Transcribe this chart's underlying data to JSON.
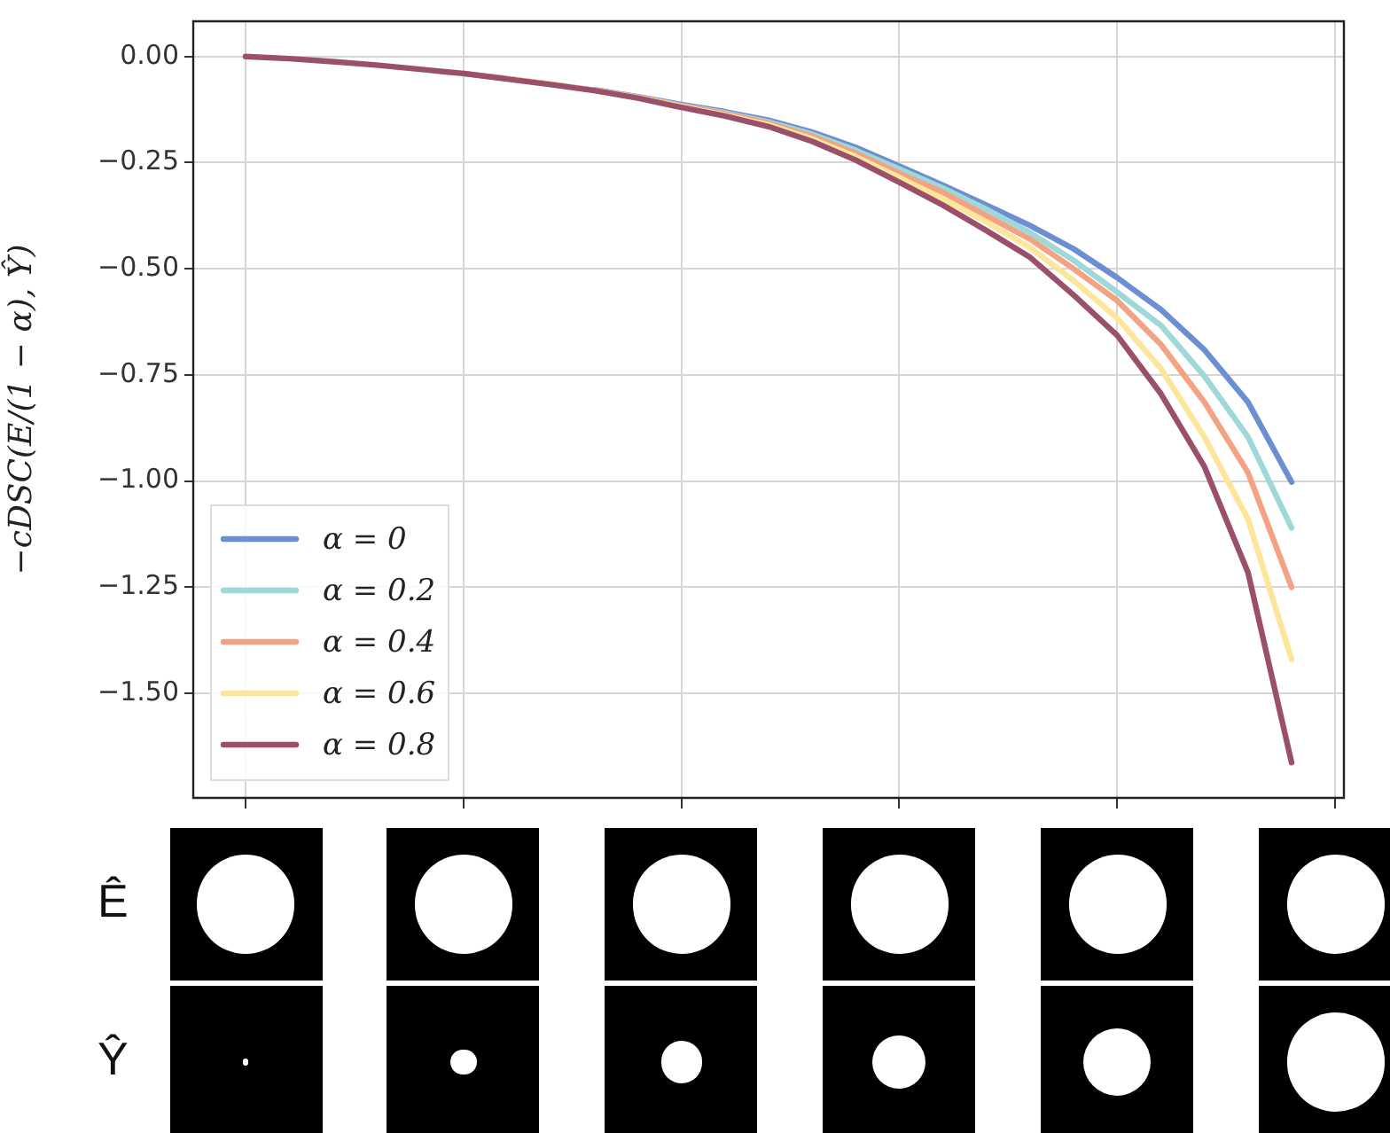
{
  "chart_data": {
    "type": "line",
    "ylabel": "−cDSC(E/(1 − α), Ŷ)",
    "categories": [
      null,
      null,
      null,
      null,
      null,
      null,
      null,
      null,
      null,
      null,
      null,
      null,
      null,
      null,
      null,
      null,
      null,
      null,
      null,
      null,
      null,
      null,
      null,
      null,
      null
    ],
    "series": [
      {
        "name": "α = 0",
        "color": "#6b8fd0",
        "values": [
          null,
          null,
          null,
          null,
          null,
          null,
          null,
          null,
          -0.078,
          -0.095,
          -0.113,
          -0.13,
          -0.15,
          -0.178,
          -0.214,
          -0.258,
          -0.303,
          -0.35,
          -0.398,
          -0.453,
          -0.521,
          -0.596,
          -0.691,
          -0.814,
          -1.002
        ]
      },
      {
        "name": "α = 0.2",
        "color": "#9ed8d8",
        "values": [
          null,
          null,
          null,
          null,
          null,
          -0.04,
          -0.052,
          null,
          -0.079,
          -0.096,
          -0.115,
          -0.133,
          -0.154,
          -0.183,
          -0.221,
          -0.265,
          -0.31,
          -0.36,
          -0.415,
          -0.48,
          -0.555,
          -0.633,
          -0.753,
          -0.896,
          -1.11
        ]
      },
      {
        "name": "α = 0.4",
        "color": "#f4a284",
        "values": [
          null,
          null,
          null,
          null,
          null,
          -0.04,
          -0.052,
          -0.065,
          -0.079,
          -0.096,
          -0.116,
          -0.135,
          -0.157,
          -0.188,
          -0.228,
          -0.275,
          -0.32,
          -0.375,
          -0.43,
          -0.5,
          -0.575,
          -0.678,
          -0.814,
          -0.98,
          -1.25
        ]
      },
      {
        "name": "α = 0.6",
        "color": "#fde59a",
        "values": [
          null,
          null,
          null,
          null,
          null,
          null,
          -0.052,
          -0.065,
          -0.08,
          -0.097,
          -0.118,
          -0.138,
          -0.161,
          -0.194,
          -0.236,
          -0.285,
          -0.335,
          -0.39,
          -0.45,
          -0.528,
          -0.616,
          -0.735,
          -0.896,
          -1.09,
          -1.42
        ]
      },
      {
        "name": "α = 0.8",
        "color": "#9a4f6a",
        "values": [
          0,
          -0.005,
          -0.012,
          -0.02,
          -0.03,
          -0.04,
          -0.053,
          -0.066,
          -0.08,
          -0.098,
          -0.12,
          -0.14,
          -0.165,
          -0.2,
          -0.244,
          -0.296,
          -0.35,
          -0.41,
          -0.473,
          -0.562,
          -0.657,
          -0.794,
          -0.966,
          -1.215,
          -1.663
        ]
      }
    ],
    "ylim": [
      -1.746,
      0.083
    ],
    "yticks": [
      {
        "value": 0,
        "label": "0.00"
      },
      {
        "value": -0.25,
        "label": "−0.25"
      },
      {
        "value": -0.5,
        "label": "−0.50"
      },
      {
        "value": -0.75,
        "label": "−0.75"
      },
      {
        "value": -1,
        "label": "−1.00"
      },
      {
        "value": -1.25,
        "label": "−1.25"
      },
      {
        "value": -1.5,
        "label": "−1.50"
      }
    ],
    "grid": true,
    "legend": "bottom left",
    "marker": "none",
    "line_style": "solid",
    "annotations": [
      "Ê",
      "Ŷ"
    ]
  }
}
